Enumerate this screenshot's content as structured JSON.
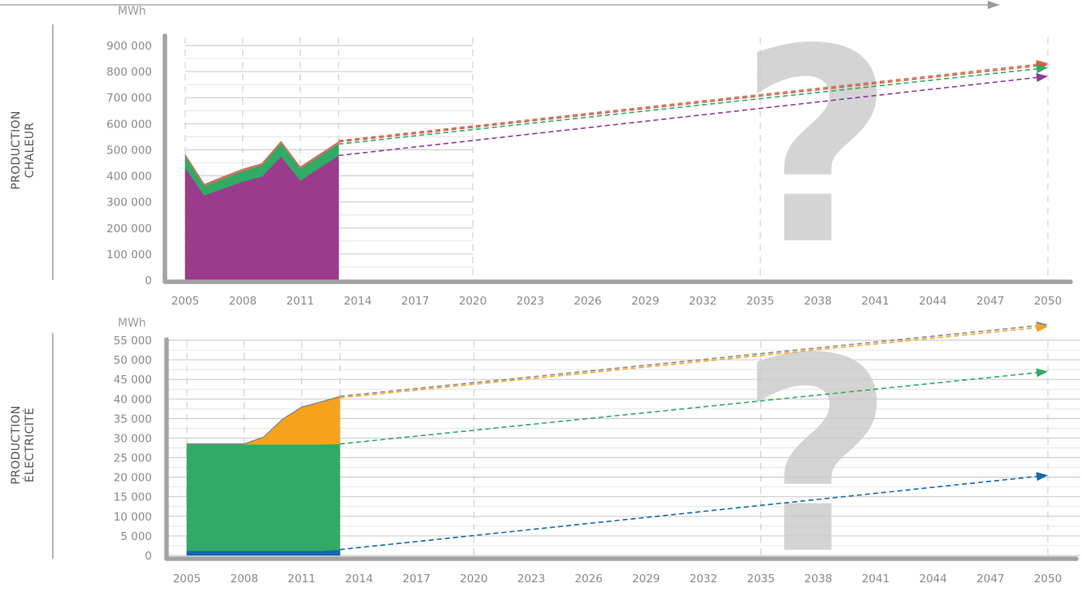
{
  "chart_data": [
    {
      "type": "area",
      "title": "",
      "side_label": [
        "PRODUCTION",
        "CHALEUR"
      ],
      "ylabel": "MWh",
      "xlim": [
        2005,
        2050
      ],
      "ylim": [
        0,
        900000
      ],
      "yticks": [
        0,
        100000,
        200000,
        300000,
        400000,
        500000,
        600000,
        700000,
        800000,
        900000
      ],
      "ytick_labels": [
        "0",
        "100 000",
        "200 000",
        "300 000",
        "400 000",
        "500 000",
        "600 000",
        "700 000",
        "800 000",
        "900 000"
      ],
      "xtick_labels": [
        "2005",
        "2008",
        "2011",
        "2014",
        "2017",
        "2020",
        "2023",
        "2026",
        "2029",
        "2032",
        "2035",
        "2038",
        "2041",
        "2044",
        "2047",
        "2050"
      ],
      "grid": true,
      "x": [
        2005,
        2006,
        2007,
        2008,
        2009,
        2010,
        2011,
        2012,
        2013
      ],
      "series": [
        {
          "color": "#9b3b8e",
          "values": [
            430000,
            325000,
            352000,
            378000,
            398000,
            475000,
            382000,
            430000,
            478000
          ]
        },
        {
          "color": "#2fab66",
          "values": [
            45000,
            35000,
            38000,
            40000,
            42000,
            50000,
            45000,
            45000,
            45000
          ]
        },
        {
          "color": "#c47560",
          "values": [
            8000,
            8000,
            8000,
            8000,
            8000,
            8000,
            8000,
            8000,
            8000
          ]
        }
      ],
      "projections": [
        {
          "color": "#c47560",
          "from": [
            2013,
            535000
          ],
          "to": [
            2050,
            832000
          ]
        },
        {
          "color": "#e0563a",
          "from": [
            2013,
            530000
          ],
          "to": [
            2050,
            826000
          ]
        },
        {
          "color": "#2fab66",
          "from": [
            2013,
            522000
          ],
          "to": [
            2050,
            815000
          ]
        },
        {
          "color": "#8a3a9c",
          "from": [
            2013,
            478000
          ],
          "to": [
            2050,
            782000
          ]
        }
      ]
    },
    {
      "type": "area",
      "title": "",
      "side_label": [
        "PRODUCTION",
        "ÉLECTRICITÉ"
      ],
      "ylabel": "MWh",
      "xlim": [
        2005,
        2050
      ],
      "ylim": [
        0,
        55000
      ],
      "yticks": [
        0,
        5000,
        10000,
        15000,
        20000,
        25000,
        30000,
        35000,
        40000,
        45000,
        50000,
        55000
      ],
      "ytick_labels": [
        "0",
        "5 000",
        "10 000",
        "15 000",
        "20 000",
        "25 000",
        "30 000",
        "35 000",
        "40 000",
        "45 000",
        "50 000",
        "55 000"
      ],
      "xtick_labels": [
        "2005",
        "2008",
        "2011",
        "2014",
        "2017",
        "2020",
        "2023",
        "2026",
        "2029",
        "2032",
        "2035",
        "2038",
        "2041",
        "2044",
        "2047",
        "2050"
      ],
      "grid": true,
      "x": [
        2005,
        2006,
        2007,
        2008,
        2009,
        2010,
        2011,
        2012,
        2013
      ],
      "series": [
        {
          "color": "#1567ad",
          "values": [
            1200,
            1200,
            1200,
            1200,
            1200,
            1200,
            1200,
            1200,
            1500
          ]
        },
        {
          "color": "#2fab66",
          "values": [
            27200,
            27200,
            27200,
            27200,
            27200,
            27200,
            27200,
            27200,
            27000
          ]
        },
        {
          "color": "#f5a31a",
          "values": [
            0,
            0,
            0,
            0,
            1700,
            6300,
            9400,
            10700,
            12000
          ]
        },
        {
          "color": "#8a8a8a",
          "values": [
            200,
            200,
            200,
            200,
            200,
            200,
            200,
            200,
            200
          ]
        }
      ],
      "projections": [
        {
          "color": "#8a8a8a",
          "from": [
            2013,
            40700
          ],
          "to": [
            2050,
            59000
          ]
        },
        {
          "color": "#f5a31a",
          "from": [
            2013,
            40300
          ],
          "to": [
            2050,
            58500
          ]
        },
        {
          "color": "#2fab66",
          "from": [
            2013,
            28500
          ],
          "to": [
            2050,
            47000
          ]
        },
        {
          "color": "#1567ad",
          "from": [
            2013,
            1500
          ],
          "to": [
            2050,
            20500
          ]
        }
      ]
    }
  ],
  "question_mark": "?"
}
